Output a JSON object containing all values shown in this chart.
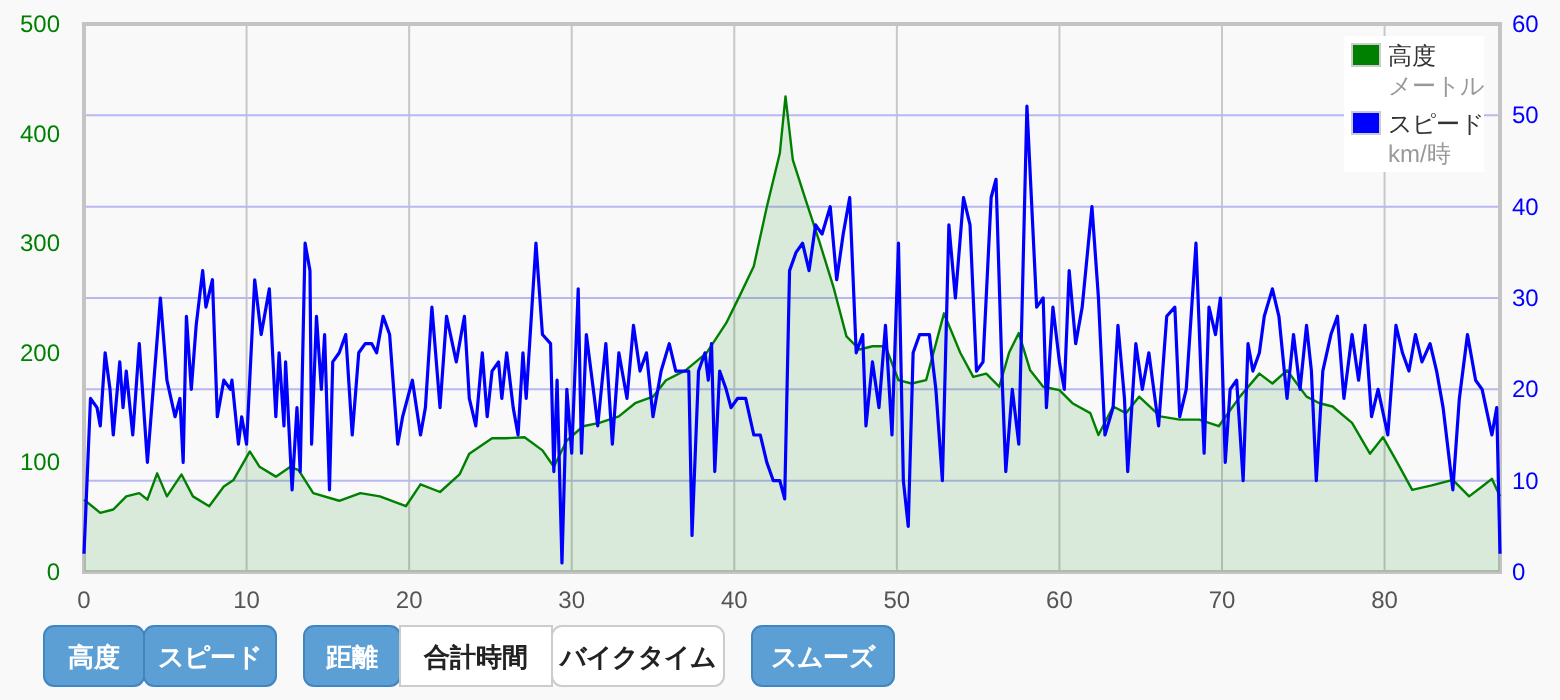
{
  "chart_data": {
    "type": "line",
    "xlim": [
      0,
      87.1
    ],
    "xticks": [
      0,
      10,
      20,
      30,
      40,
      50,
      60,
      70,
      80
    ],
    "ylim": [
      0,
      500
    ],
    "yticks": [
      0,
      100,
      200,
      300,
      400,
      500
    ],
    "y2lim": [
      0,
      60
    ],
    "y2ticks": [
      0,
      10,
      20,
      30,
      40,
      50,
      60
    ],
    "grid": true,
    "legend": "top right",
    "series": [
      {
        "name": "高度",
        "type": "area",
        "color": "#008000",
        "x": [
          0,
          1.0,
          1.8,
          2.6,
          3.4,
          3.9,
          4.5,
          5.1,
          6.0,
          6.7,
          7.7,
          8.6,
          9.2,
          10.2,
          10.8,
          11.8,
          12.7,
          13.2,
          14.1,
          15.7,
          17.0,
          18.2,
          19.8,
          20.7,
          21.9,
          23.1,
          23.7,
          25.1,
          25.9,
          27.1,
          28.2,
          28.9,
          29.7,
          30.7,
          31.7,
          32.9,
          33.9,
          35.0,
          35.8,
          37.0,
          38.3,
          39.5,
          40.3,
          41.2,
          42.0,
          42.8,
          43.15,
          43.6,
          44.4,
          45.2,
          46.1,
          46.9,
          47.7,
          48.5,
          49.3,
          50.1,
          50.9,
          51.8,
          52.9,
          53.9,
          54.7,
          55.5,
          56.3,
          56.9,
          57.5,
          58.2,
          59.0,
          60.0,
          60.8,
          61.9,
          62.4,
          63.3,
          64.1,
          64.9,
          66.2,
          67.4,
          68.6,
          69.8,
          71.1,
          72.3,
          73.1,
          74.0,
          75.2,
          76.0,
          76.8,
          78.0,
          79.1,
          79.9,
          80.7,
          81.7,
          82.9,
          84.2,
          85.2,
          86.0,
          86.6,
          87.1
        ],
        "values": [
          66,
          54,
          57,
          69,
          72,
          66,
          90,
          69,
          89,
          69,
          60,
          78,
          84,
          110,
          96,
          87,
          96,
          93,
          72,
          65,
          72,
          69,
          60,
          80,
          73,
          89,
          108,
          122,
          122,
          123,
          111,
          96,
          120,
          133,
          136,
          142,
          154,
          160,
          175,
          184,
          200,
          227,
          251,
          279,
          333,
          382,
          434,
          376,
          339,
          303,
          260,
          215,
          203,
          206,
          206,
          175,
          172,
          175,
          236,
          200,
          178,
          181,
          169,
          200,
          218,
          184,
          169,
          166,
          154,
          145,
          125,
          151,
          145,
          160,
          142,
          139,
          139,
          133,
          160,
          181,
          172,
          184,
          160,
          154,
          151,
          136,
          108,
          123,
          102,
          75,
          79,
          84,
          69,
          78,
          85,
          69
        ]
      },
      {
        "name": "スピード",
        "type": "line",
        "axis": "y2",
        "color": "#0000ff",
        "x": [
          0,
          0.4,
          0.8,
          1.0,
          1.3,
          1.6,
          1.8,
          2.2,
          2.4,
          2.6,
          3.0,
          3.4,
          3.9,
          4.3,
          4.7,
          5.1,
          5.6,
          5.9,
          6.1,
          6.3,
          6.6,
          6.9,
          7.3,
          7.5,
          7.9,
          8.2,
          8.6,
          9.0,
          9.1,
          9.5,
          9.7,
          10.0,
          10.5,
          10.9,
          11.4,
          11.8,
          12.0,
          12.3,
          12.4,
          12.8,
          13.1,
          13.3,
          13.6,
          13.9,
          14.0,
          14.3,
          14.6,
          14.8,
          15.1,
          15.3,
          15.7,
          16.1,
          16.5,
          16.9,
          17.3,
          17.7,
          18.0,
          18.4,
          18.8,
          19.3,
          19.6,
          20.2,
          20.7,
          21.0,
          21.4,
          21.9,
          22.3,
          22.9,
          23.4,
          23.7,
          24.1,
          24.5,
          24.8,
          25.1,
          25.5,
          25.7,
          26.0,
          26.4,
          26.7,
          27.0,
          27.2,
          27.8,
          28.2,
          28.7,
          28.9,
          29.1,
          29.4,
          29.7,
          30.0,
          30.4,
          30.6,
          30.9,
          31.4,
          31.6,
          32.1,
          32.5,
          32.9,
          33.4,
          33.8,
          34.2,
          34.6,
          35.0,
          35.5,
          36.0,
          36.4,
          36.8,
          37.2,
          37.4,
          37.8,
          38.2,
          38.4,
          38.6,
          38.8,
          39.1,
          39.5,
          39.8,
          40.2,
          40.7,
          41.2,
          41.6,
          42.0,
          42.4,
          42.8,
          43.1,
          43.4,
          43.8,
          44.2,
          44.6,
          45.0,
          45.4,
          45.9,
          46.3,
          46.7,
          47.1,
          47.5,
          47.9,
          48.1,
          48.5,
          48.9,
          49.3,
          49.7,
          50.1,
          50.4,
          50.7,
          51.0,
          51.4,
          52.0,
          52.4,
          52.8,
          53.2,
          53.6,
          54.1,
          54.5,
          54.9,
          55.3,
          55.8,
          56.1,
          56.5,
          56.7,
          57.1,
          57.5,
          58.0,
          58.6,
          59.0,
          59.2,
          59.6,
          60.0,
          60.3,
          60.6,
          61.0,
          61.4,
          62.0,
          62.4,
          62.8,
          63.3,
          63.6,
          64.0,
          64.2,
          64.7,
          65.1,
          65.5,
          66.1,
          66.6,
          67.1,
          67.4,
          67.8,
          68.4,
          68.7,
          68.9,
          69.2,
          69.6,
          69.9,
          70.2,
          70.5,
          70.9,
          71.3,
          71.6,
          71.9,
          72.3,
          72.6,
          73.1,
          73.5,
          74.0,
          74.4,
          74.8,
          75.2,
          75.5,
          75.8,
          76.2,
          76.7,
          77.1,
          77.5,
          78.0,
          78.4,
          78.8,
          79.2,
          79.6,
          80.2,
          80.7,
          81.1,
          81.5,
          81.9,
          82.3,
          82.8,
          83.2,
          83.6,
          84.2,
          84.6,
          85.1,
          85.6,
          86.0,
          86.6,
          86.9,
          87.1
        ],
        "values": [
          2,
          19,
          18,
          16,
          24,
          20,
          15,
          23,
          18,
          22,
          15,
          25,
          12,
          21,
          30,
          21,
          17,
          19,
          12,
          28,
          20,
          27,
          33,
          29,
          32,
          17,
          21,
          20,
          21,
          14,
          17,
          14,
          32,
          26,
          31,
          17,
          24,
          16,
          23,
          9,
          18,
          11,
          36,
          33,
          14,
          28,
          20,
          26,
          9,
          23,
          24,
          26,
          15,
          24,
          25,
          25,
          24,
          28,
          26,
          14,
          17,
          21,
          15,
          18,
          29,
          18,
          28,
          23,
          28,
          19,
          16,
          24,
          17,
          22,
          23,
          19,
          24,
          18,
          15,
          24,
          19,
          36,
          26,
          25,
          11,
          21,
          1,
          20,
          13,
          31,
          13,
          26,
          19,
          16,
          25,
          14,
          24,
          19,
          27,
          22,
          24,
          17,
          22,
          25,
          22,
          22,
          22,
          4,
          22,
          24,
          21,
          25,
          11,
          22,
          20,
          18,
          19,
          19,
          15,
          15,
          12,
          10,
          10,
          8,
          33,
          35,
          36,
          33,
          38,
          37,
          40,
          32,
          37,
          41,
          24,
          26,
          16,
          23,
          18,
          27,
          15,
          36,
          10,
          5,
          24,
          26,
          26,
          20,
          10,
          38,
          30,
          41,
          38,
          22,
          23,
          41,
          43,
          20,
          11,
          20,
          14,
          51,
          29,
          30,
          18,
          29,
          23,
          20,
          33,
          25,
          29,
          40,
          30,
          15,
          18,
          27,
          19,
          11,
          25,
          20,
          24,
          16,
          28,
          29,
          17,
          20,
          36,
          22,
          13,
          29,
          26,
          30,
          12,
          20,
          21,
          10,
          25,
          22,
          24,
          28,
          31,
          28,
          19,
          26,
          20,
          27,
          22,
          10,
          22,
          26,
          28,
          19,
          26,
          21,
          27,
          17,
          20,
          15,
          27,
          24,
          22,
          26,
          23,
          25,
          22,
          18,
          9,
          19,
          26,
          21,
          20,
          15,
          18,
          2
        ]
      }
    ],
    "annotations": [
      "メートル",
      "km/時",
      "高度",
      "スピード",
      "距離",
      "合計時間",
      "バイクタイム",
      "スムーズ"
    ]
  }
}
